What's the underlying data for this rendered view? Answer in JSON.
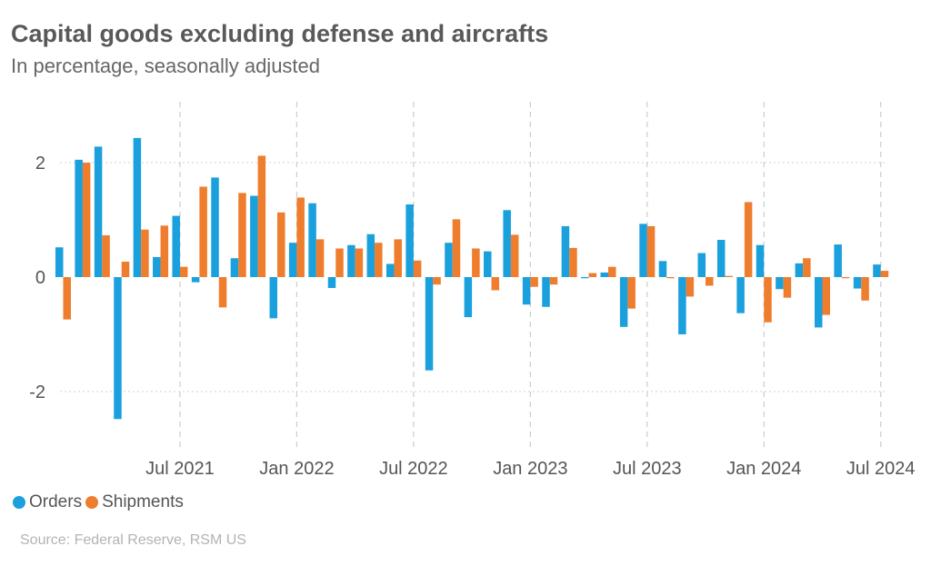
{
  "colors": {
    "orders": "#1aa0dc",
    "shipments": "#ef7d2e",
    "grid": "#d0d0d0",
    "axis_text": "#555555"
  },
  "chart_data": {
    "type": "bar",
    "title": "Capital goods excluding defense and aircrafts",
    "subtitle": "In percentage, seasonally adjusted",
    "source": "Source: Federal Reserve, RSM US",
    "xlabel": "",
    "ylabel": "",
    "ylim": [
      -3,
      3
    ],
    "yticks": [
      2,
      0,
      -2
    ],
    "ytick_labels": [
      "2",
      "0",
      "-2"
    ],
    "grid": true,
    "legend": "bottom-left",
    "categories": [
      "Jan 2021",
      "Feb 2021",
      "Mar 2021",
      "Apr 2021",
      "May 2021",
      "Jun 2021",
      "Jul 2021",
      "Aug 2021",
      "Sep 2021",
      "Oct 2021",
      "Nov 2021",
      "Dec 2021",
      "Jan 2022",
      "Feb 2022",
      "Mar 2022",
      "Apr 2022",
      "May 2022",
      "Jun 2022",
      "Jul 2022",
      "Aug 2022",
      "Sep 2022",
      "Oct 2022",
      "Nov 2022",
      "Dec 2022",
      "Jan 2023",
      "Feb 2023",
      "Mar 2023",
      "Apr 2023",
      "May 2023",
      "Jun 2023",
      "Jul 2023",
      "Aug 2023",
      "Sep 2023",
      "Oct 2023",
      "Nov 2023",
      "Dec 2023",
      "Jan 2024",
      "Feb 2024",
      "Mar 2024",
      "Apr 2024",
      "May 2024",
      "Jun 2024",
      "Jul 2024"
    ],
    "x_tick_labels": [
      {
        "category": "Jul 2021",
        "label": "Jul 2021"
      },
      {
        "category": "Jan 2022",
        "label": "Jan 2022"
      },
      {
        "category": "Jul 2022",
        "label": "Jul 2022"
      },
      {
        "category": "Jan 2023",
        "label": "Jan 2023"
      },
      {
        "category": "Jul 2023",
        "label": "Jul 2023"
      },
      {
        "category": "Jan 2024",
        "label": "Jan 2024"
      },
      {
        "category": "Jul 2024",
        "label": "Jul 2024"
      }
    ],
    "series": [
      {
        "name": "Orders",
        "values": [
          0.52,
          2.05,
          2.28,
          -2.48,
          2.43,
          0.35,
          1.07,
          -0.09,
          1.74,
          0.33,
          1.42,
          -0.72,
          0.6,
          1.29,
          -0.19,
          0.56,
          0.75,
          0.23,
          1.27,
          -1.63,
          0.6,
          -0.7,
          0.45,
          1.17,
          -0.48,
          -0.52,
          0.89,
          -0.02,
          0.08,
          -0.87,
          0.93,
          0.28,
          -1.0,
          0.42,
          0.65,
          -0.63,
          0.56,
          -0.21,
          0.24,
          -0.88,
          0.57,
          -0.2,
          0.22
        ]
      },
      {
        "name": "Shipments",
        "values": [
          -0.74,
          2.0,
          0.73,
          0.27,
          0.83,
          0.9,
          0.18,
          1.58,
          -0.53,
          1.47,
          2.12,
          1.13,
          1.39,
          0.66,
          0.5,
          0.5,
          0.6,
          0.66,
          0.29,
          -0.13,
          1.01,
          0.5,
          -0.23,
          0.74,
          -0.17,
          -0.13,
          0.51,
          0.07,
          0.18,
          -0.55,
          0.89,
          -0.02,
          -0.34,
          -0.15,
          0.02,
          1.31,
          -0.79,
          -0.36,
          0.33,
          -0.66,
          -0.02,
          -0.41,
          0.11
        ]
      }
    ]
  }
}
